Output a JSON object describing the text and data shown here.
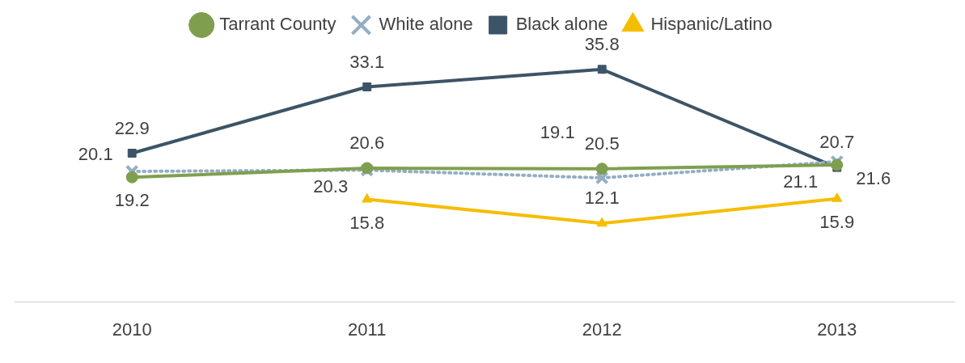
{
  "chart_data": {
    "type": "line",
    "categories": [
      "2010",
      "2011",
      "2012",
      "2013"
    ],
    "series": [
      {
        "name": "Tarrant County",
        "color": "#7f9f4f",
        "values": [
          19.2,
          20.6,
          20.5,
          21.1
        ],
        "marker": "circle",
        "line_style": "solid"
      },
      {
        "name": "White alone",
        "color": "#93aec4",
        "values": [
          20.1,
          20.3,
          19.1,
          21.6
        ],
        "marker": "cross",
        "line_style": "dotted"
      },
      {
        "name": "Black alone",
        "color": "#3d5466",
        "values": [
          22.9,
          33.1,
          35.8,
          20.7
        ],
        "marker": "square",
        "line_style": "solid"
      },
      {
        "name": "Hispanic/Latino",
        "color": "#f5bd00",
        "values": [
          null,
          15.8,
          12.1,
          15.9
        ],
        "marker": "triangle",
        "line_style": "solid"
      }
    ],
    "tick_labels": "x",
    "grid": false,
    "legend": "top",
    "data_labels": true
  }
}
